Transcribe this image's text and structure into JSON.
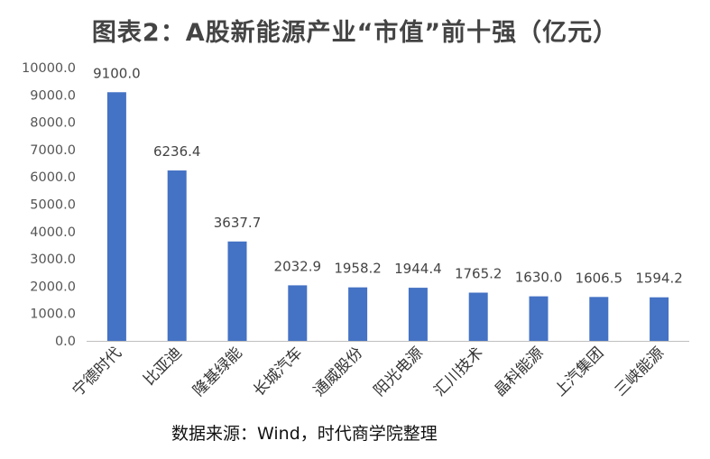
{
  "title": "图表2：A股新能源产业“市值”前十强（亿元）",
  "source": "数据来源：Wind，时代商学院整理",
  "chart_data": {
    "type": "bar",
    "title": "图表2：A股新能源产业“市值”前十强（亿元）",
    "xlabel": "",
    "ylabel": "",
    "categories": [
      "宁德时代",
      "比亚迪",
      "隆基绿能",
      "长城汽车",
      "通威股份",
      "阳光电源",
      "汇川技术",
      "晶科能源",
      "上汽集团",
      "三峡能源"
    ],
    "values": [
      9100.0,
      6236.4,
      3637.7,
      2032.9,
      1958.2,
      1944.4,
      1765.2,
      1630.0,
      1606.5,
      1594.2
    ],
    "data_labels": [
      "9100.0",
      "6236.4",
      "3637.7",
      "2032.9",
      "1958.2",
      "1944.4",
      "1765.2",
      "1630.0",
      "1606.5",
      "1594.2"
    ],
    "ylim": [
      0,
      10000
    ],
    "yticks": [
      "0.0",
      "1000.0",
      "2000.0",
      "3000.0",
      "4000.0",
      "5000.0",
      "6000.0",
      "7000.0",
      "8000.0",
      "9000.0",
      "10000.0"
    ],
    "grid": false,
    "bar_color": "#4472C4",
    "axis_color": "#bfbfbf"
  }
}
